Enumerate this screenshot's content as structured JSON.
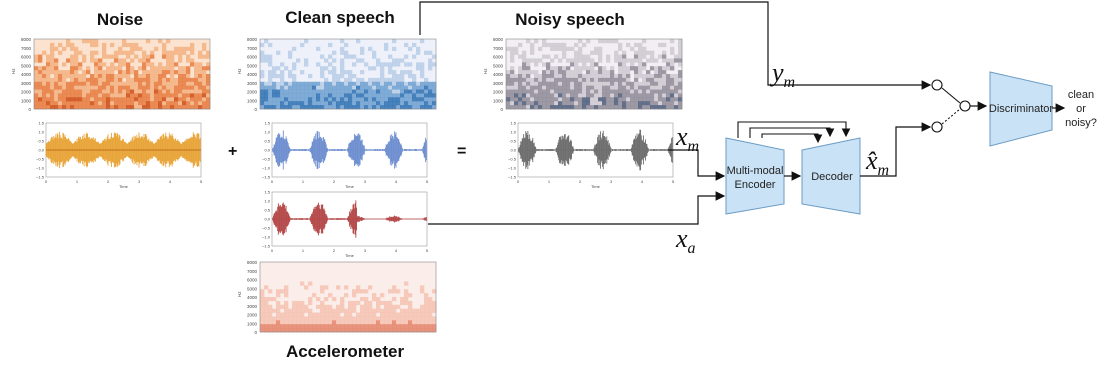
{
  "headings": {
    "noise": "Noise",
    "clean": "Clean speech",
    "noisy": "Noisy speech",
    "accel": "Accelerometer"
  },
  "operators": {
    "plus": "+",
    "equals": "="
  },
  "blocks": {
    "encoder_line1": "Multi-modal",
    "encoder_line2": "Encoder",
    "decoder": "Decoder",
    "discriminator": "Discriminator"
  },
  "output_label": [
    "clean",
    "or",
    "noisy?"
  ],
  "symbols": {
    "xm": "x",
    "xm_sub": "m",
    "xa": "x",
    "xa_sub": "a",
    "ym": "y",
    "ym_sub": "m",
    "xhat": "x̂",
    "xhat_sub": "m"
  },
  "spectrogram_ticks": [
    "8000",
    "7000",
    "6000",
    "5000",
    "4000",
    "3000",
    "2000",
    "1000",
    "0"
  ],
  "spectrogram_axis_label": "Hz",
  "waveform_y_ticks": [
    "1.5",
    "1.0",
    "0.5",
    "0.0",
    "−0.5",
    "−1.0",
    "−1.5"
  ],
  "waveform_x_ticks": [
    "0",
    "1",
    "2",
    "3",
    "4",
    "5"
  ],
  "waveform_axis_label": "Time",
  "colors": {
    "noise": "#e8a53a",
    "clean": "#6f8fd0",
    "accel": "#b54a4a",
    "noisy": "#6e6e6e",
    "block_fill": "#c9e2f5",
    "block_stroke": "#6a9bc4"
  }
}
